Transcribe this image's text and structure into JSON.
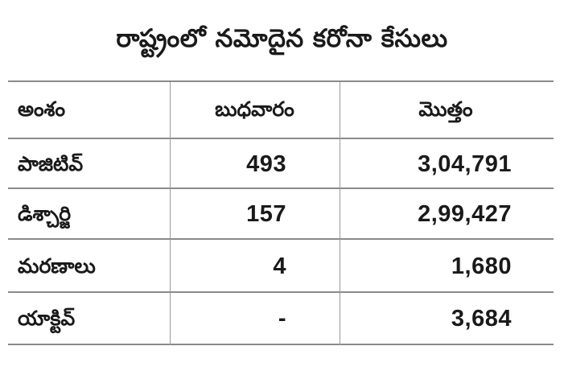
{
  "title": "రాష్ట్రంలో నమోదైన కరోనా కేసులు",
  "table": {
    "headers": [
      "అంశం",
      "బుధవారం",
      "మొత్తం"
    ],
    "rows": [
      {
        "label": "పాజిటివ్",
        "wednesday": "493",
        "total": "3,04,791"
      },
      {
        "label": "డిశ్చార్జి",
        "wednesday": "157",
        "total": "2,99,427"
      },
      {
        "label": "మరణాలు",
        "wednesday": "4",
        "total": "1,680"
      },
      {
        "label": "యాక్టివ్",
        "wednesday": "-",
        "total": "3,684"
      }
    ]
  },
  "colors": {
    "text": "#1a1a1a",
    "rule": "#8a8a8a",
    "background": "#ffffff"
  }
}
